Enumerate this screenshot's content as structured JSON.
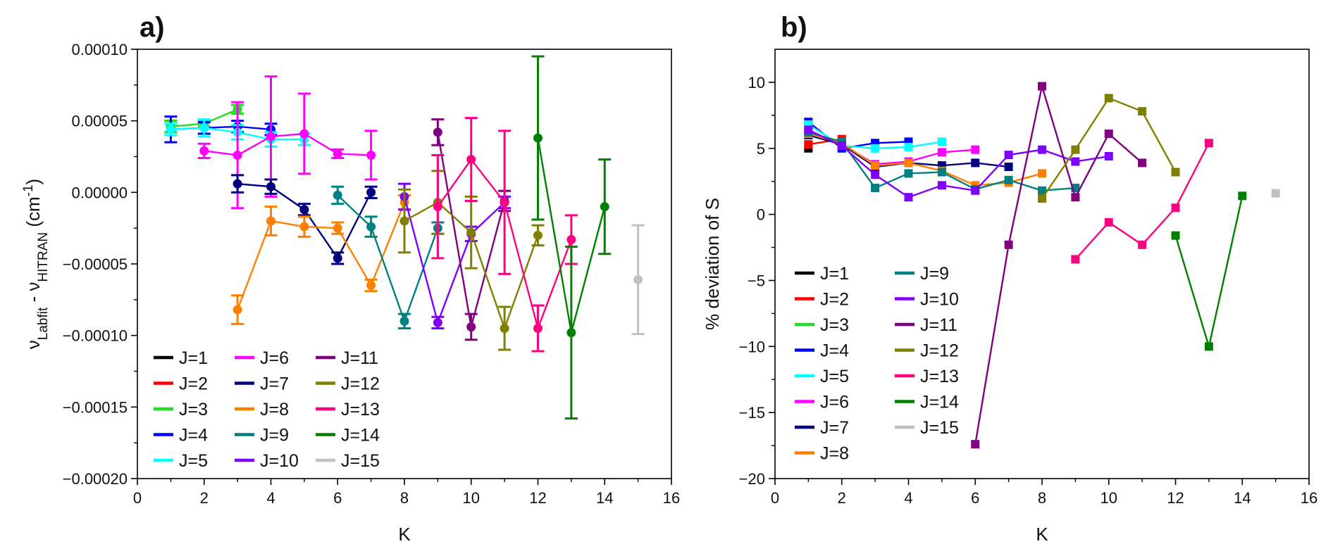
{
  "colors": {
    "J=1": "#000000",
    "J=2": "#ff0000",
    "J=3": "#22dd22",
    "J=4": "#0000ff",
    "J=5": "#00ffff",
    "J=6": "#ff00ff",
    "J=7": "#000080",
    "J=8": "#ff8000",
    "J=9": "#008080",
    "J=10": "#8000ff",
    "J=11": "#800080",
    "J=12": "#808000",
    "J=13": "#ff0080",
    "J=14": "#008000",
    "J=15": "#c0c0c0"
  },
  "chart_data": [
    {
      "id": "a",
      "panel_label": "a)",
      "type": "line",
      "marker": "circle",
      "error_bars": true,
      "xlabel": "K",
      "ylabel_parts": [
        "ν",
        "Labfit",
        " - ν",
        "HITRAN",
        " (cm",
        "-1",
        ")"
      ],
      "xlim": [
        0,
        16
      ],
      "ylim": [
        -0.0002,
        0.0001
      ],
      "xticks": [
        0,
        2,
        4,
        6,
        8,
        10,
        12,
        14,
        16
      ],
      "xtick_labels": [
        "0",
        "2",
        "4",
        "6",
        "8",
        "10",
        "12",
        "14",
        "16"
      ],
      "yticks": [
        -0.0002,
        -0.00015,
        -0.0001,
        -5e-05,
        0,
        5e-05,
        0.0001
      ],
      "ytick_labels": [
        "−0.00020",
        "−0.00015",
        "−0.00010",
        "−0.00005",
        "0.00000",
        "0.00005",
        "0.00010"
      ],
      "legend_position": "bottom-left",
      "legend_columns": [
        [
          "J=1",
          "J=2",
          "J=3",
          "J=4",
          "J=5"
        ],
        [
          "J=6",
          "J=7",
          "J=8",
          "J=9",
          "J=10"
        ],
        [
          "J=11",
          "J=12",
          "J=13",
          "J=14",
          "J=15"
        ]
      ],
      "series": [
        {
          "name": "J=1",
          "points": [
            [
              1,
              4.5e-05,
              5e-06
            ]
          ]
        },
        {
          "name": "J=2",
          "points": [
            [
              1,
              4.6e-05,
              4e-06
            ]
          ]
        },
        {
          "name": "J=3",
          "points": [
            [
              1,
              4.6e-05,
              4e-06
            ],
            [
              2,
              4.8e-05,
              2e-06
            ],
            [
              3,
              5.8e-05,
              3e-06
            ]
          ]
        },
        {
          "name": "J=4",
          "points": [
            [
              1,
              4.4e-05,
              9e-06
            ],
            [
              2,
              4.5e-05,
              4e-06
            ],
            [
              3,
              4.6e-05,
              4e-06
            ],
            [
              4,
              4.4e-05,
              4e-06
            ]
          ]
        },
        {
          "name": "J=5",
          "points": [
            [
              1,
              4.4e-05,
              4e-06
            ],
            [
              2,
              4.5e-05,
              6e-06
            ],
            [
              3,
              4.2e-05,
              5e-06
            ],
            [
              4,
              3.7e-05,
              5e-06
            ],
            [
              5,
              3.7e-05,
              4e-06
            ]
          ]
        },
        {
          "name": "J=6",
          "points": [
            [
              2,
              2.9e-05,
              5e-06
            ],
            [
              3,
              2.6e-05,
              3.7e-05
            ],
            [
              4,
              3.9e-05,
              4.2e-05
            ],
            [
              5,
              4.1e-05,
              2.8e-05
            ],
            [
              6,
              2.7e-05,
              3e-06
            ],
            [
              7,
              2.6e-05,
              1.7e-05
            ]
          ]
        },
        {
          "name": "J=7",
          "points": [
            [
              3,
              6e-06,
              6e-06
            ],
            [
              4,
              4e-06,
              5e-06
            ],
            [
              5,
              -1.2e-05,
              4e-06
            ],
            [
              6,
              -4.6e-05,
              4e-06
            ],
            [
              7,
              0,
              4e-06
            ]
          ]
        },
        {
          "name": "J=8",
          "points": [
            [
              3,
              -8.2e-05,
              1e-05
            ],
            [
              4,
              -2e-05,
              1e-05
            ],
            [
              5,
              -2.4e-05,
              7e-06
            ],
            [
              6,
              -2.5e-05,
              4e-06
            ],
            [
              7,
              -6.5e-05,
              4e-06
            ],
            [
              8,
              -7e-06,
              5e-06
            ]
          ]
        },
        {
          "name": "J=9",
          "points": [
            [
              6,
              -2e-06,
              6e-06
            ],
            [
              7,
              -2.4e-05,
              7e-06
            ],
            [
              8,
              -9e-05,
              5e-06
            ],
            [
              9,
              -2.5e-05,
              4e-06
            ]
          ]
        },
        {
          "name": "J=10",
          "points": [
            [
              8,
              -3e-06,
              9e-06
            ],
            [
              9,
              -9.1e-05,
              4e-06
            ],
            [
              10,
              -2.9e-05,
              5e-06
            ],
            [
              11,
              -7e-06,
              4e-06
            ]
          ]
        },
        {
          "name": "J=11",
          "points": [
            [
              9,
              4.2e-05,
              9e-06
            ],
            [
              10,
              -9.4e-05,
              9e-06
            ],
            [
              11,
              -6e-06,
              7e-06
            ]
          ]
        },
        {
          "name": "J=12",
          "points": [
            [
              8,
              -2e-05,
              2.2e-05
            ],
            [
              9,
              -7e-06,
              2.2e-05
            ],
            [
              10,
              -2.8e-05,
              2.5e-05
            ],
            [
              11,
              -9.5e-05,
              1.5e-05
            ],
            [
              12,
              -3e-05,
              7e-06
            ]
          ]
        },
        {
          "name": "J=13",
          "points": [
            [
              9,
              -1e-05,
              3.6e-05
            ],
            [
              10,
              2.3e-05,
              2.9e-05
            ],
            [
              11,
              -7e-06,
              5e-05
            ],
            [
              12,
              -9.5e-05,
              1.6e-05
            ],
            [
              13,
              -3.3e-05,
              1.7e-05
            ]
          ]
        },
        {
          "name": "J=14",
          "points": [
            [
              12,
              3.8e-05,
              5.7e-05
            ],
            [
              13,
              -9.8e-05,
              6e-05
            ],
            [
              14,
              -1e-05,
              3.3e-05
            ]
          ]
        },
        {
          "name": "J=15",
          "points": [
            [
              15,
              -6.1e-05,
              3.8e-05
            ]
          ]
        }
      ]
    },
    {
      "id": "b",
      "panel_label": "b)",
      "type": "line",
      "marker": "square",
      "error_bars": false,
      "xlabel": "K",
      "ylabel": "% deviation of S",
      "xlim": [
        0,
        16
      ],
      "ylim": [
        -20,
        12.5
      ],
      "xticks": [
        0,
        2,
        4,
        6,
        8,
        10,
        12,
        14,
        16
      ],
      "xtick_labels": [
        "0",
        "2",
        "4",
        "6",
        "8",
        "10",
        "12",
        "14",
        "16"
      ],
      "yticks": [
        -20,
        -15,
        -10,
        -5,
        0,
        5,
        10
      ],
      "ytick_labels": [
        "−20",
        "−15",
        "−10",
        "−5",
        "0",
        "5",
        "10"
      ],
      "legend_position": "bottom-left",
      "legend_columns": [
        [
          "J=1",
          "J=2",
          "J=3",
          "J=4",
          "J=5",
          "J=6",
          "J=7",
          "J=8"
        ],
        [
          "J=9",
          "J=10",
          "J=11",
          "J=12",
          "J=13",
          "J=14",
          "J=15"
        ]
      ],
      "series": [
        {
          "name": "J=1",
          "points": [
            [
              1,
              5.0
            ]
          ]
        },
        {
          "name": "J=2",
          "points": [
            [
              1,
              5.3
            ],
            [
              2,
              5.7
            ]
          ]
        },
        {
          "name": "J=3",
          "points": [
            [
              1,
              6.0
            ],
            [
              2,
              5.3
            ]
          ]
        },
        {
          "name": "J=4",
          "points": [
            [
              1,
              7.0
            ],
            [
              2,
              5.0
            ],
            [
              3,
              5.4
            ],
            [
              4,
              5.5
            ]
          ]
        },
        {
          "name": "J=5",
          "points": [
            [
              1,
              6.8
            ],
            [
              2,
              5.2
            ],
            [
              3,
              5.0
            ],
            [
              4,
              5.1
            ],
            [
              5,
              5.5
            ]
          ]
        },
        {
          "name": "J=6",
          "points": [
            [
              1,
              6.3
            ],
            [
              2,
              5.3
            ],
            [
              3,
              3.8
            ],
            [
              4,
              4.0
            ],
            [
              5,
              4.7
            ],
            [
              6,
              4.9
            ]
          ]
        },
        {
          "name": "J=7",
          "points": [
            [
              1,
              6.0
            ],
            [
              2,
              5.3
            ],
            [
              3,
              3.6
            ],
            [
              4,
              3.9
            ],
            [
              5,
              3.7
            ],
            [
              6,
              3.9
            ],
            [
              7,
              3.6
            ]
          ]
        },
        {
          "name": "J=8",
          "points": [
            [
              1,
              6.1
            ],
            [
              2,
              5.4
            ],
            [
              3,
              3.7
            ],
            [
              4,
              3.9
            ],
            [
              5,
              3.3
            ],
            [
              6,
              2.2
            ],
            [
              7,
              2.4
            ],
            [
              8,
              3.1
            ]
          ]
        },
        {
          "name": "J=9",
          "points": [
            [
              1,
              6.2
            ],
            [
              2,
              5.5
            ],
            [
              3,
              2.0
            ],
            [
              4,
              3.1
            ],
            [
              5,
              3.2
            ],
            [
              6,
              1.9
            ],
            [
              7,
              2.6
            ],
            [
              8,
              1.8
            ],
            [
              9,
              2.0
            ]
          ]
        },
        {
          "name": "J=10",
          "points": [
            [
              1,
              6.4
            ],
            [
              2,
              5.2
            ],
            [
              3,
              3.0
            ],
            [
              4,
              1.3
            ],
            [
              5,
              2.2
            ],
            [
              6,
              1.8
            ],
            [
              7,
              4.5
            ],
            [
              8,
              4.9
            ],
            [
              9,
              4.0
            ],
            [
              10,
              4.4
            ]
          ]
        },
        {
          "name": "J=11",
          "points": [
            [
              6,
              -17.4
            ],
            [
              7,
              -2.3
            ],
            [
              8,
              9.7
            ],
            [
              9,
              1.3
            ],
            [
              10,
              6.1
            ],
            [
              11,
              3.9
            ]
          ]
        },
        {
          "name": "J=12",
          "points": [
            [
              8,
              1.2
            ],
            [
              9,
              4.9
            ],
            [
              10,
              8.8
            ],
            [
              11,
              7.8
            ],
            [
              12,
              3.2
            ]
          ]
        },
        {
          "name": "J=13",
          "points": [
            [
              9,
              -3.4
            ],
            [
              10,
              -0.6
            ],
            [
              11,
              -2.3
            ],
            [
              12,
              0.5
            ],
            [
              13,
              5.4
            ]
          ]
        },
        {
          "name": "J=14",
          "points": [
            [
              12,
              -1.6
            ],
            [
              13,
              -10.0
            ],
            [
              14,
              1.4
            ]
          ]
        },
        {
          "name": "J=15",
          "points": [
            [
              15,
              1.6
            ]
          ]
        }
      ]
    }
  ]
}
